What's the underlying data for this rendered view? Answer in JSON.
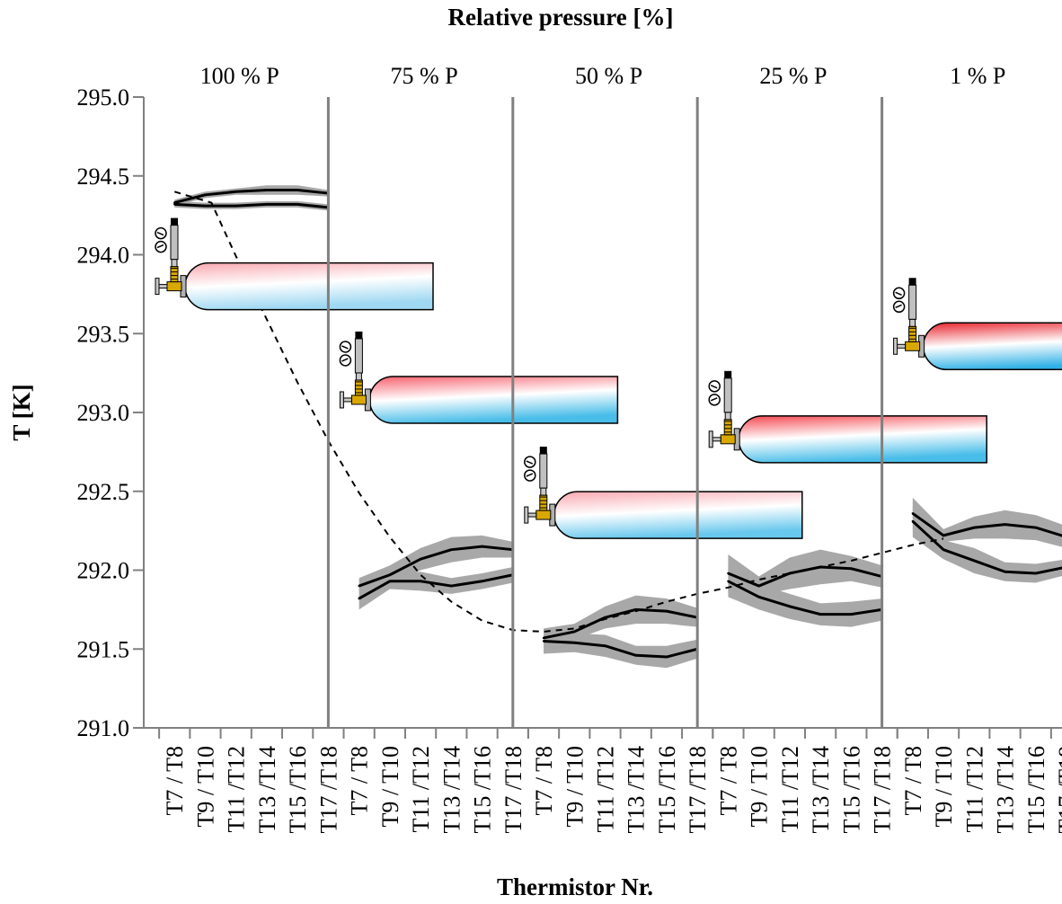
{
  "chart_data": {
    "type": "line",
    "title": "Relative pressure [%]",
    "xlabel": "Thermistor Nr.",
    "ylabel": "T [K]",
    "ylim": [
      291.0,
      295.0
    ],
    "yticks": [
      "291.0",
      "291.5",
      "292.0",
      "292.5",
      "293.0",
      "293.5",
      "294.0",
      "294.5",
      "295.0"
    ],
    "categories": [
      "T7 / T8",
      "T9 / T10",
      "T11 /T12",
      "T13 /T14",
      "T15 /T16",
      "T17 /T18"
    ],
    "grid": false,
    "panels": [
      {
        "label": "100 % P",
        "series": [
          {
            "values": [
              294.33,
              294.38,
              294.4,
              294.41,
              294.41,
              294.39
            ],
            "band": [
              0.02,
              0.02,
              0.02,
              0.03,
              0.03,
              0.02
            ]
          },
          {
            "values": [
              294.32,
              294.31,
              294.31,
              294.32,
              294.32,
              294.3
            ],
            "band": [
              0.02,
              0.02,
              0.02,
              0.02,
              0.02,
              0.02
            ]
          }
        ]
      },
      {
        "label": "75 % P",
        "series": [
          {
            "values": [
              291.9,
              291.97,
              292.07,
              292.13,
              292.15,
              292.13
            ],
            "band": [
              0.05,
              0.06,
              0.07,
              0.08,
              0.07,
              0.05
            ]
          },
          {
            "values": [
              291.82,
              291.93,
              291.93,
              291.9,
              291.93,
              291.97
            ],
            "band": [
              0.07,
              0.05,
              0.06,
              0.05,
              0.05,
              0.05
            ]
          }
        ]
      },
      {
        "label": "50 % P",
        "series": [
          {
            "values": [
              291.57,
              291.61,
              291.7,
              291.75,
              291.74,
              291.7
            ],
            "band": [
              0.06,
              0.05,
              0.07,
              0.09,
              0.08,
              0.06
            ]
          },
          {
            "values": [
              291.55,
              291.54,
              291.52,
              291.46,
              291.45,
              291.5
            ],
            "band": [
              0.08,
              0.06,
              0.07,
              0.06,
              0.07,
              0.06
            ]
          }
        ]
      },
      {
        "label": "25 % P",
        "series": [
          {
            "values": [
              291.98,
              291.9,
              291.98,
              292.02,
              292.01,
              291.96
            ],
            "band": [
              0.12,
              0.06,
              0.1,
              0.11,
              0.08,
              0.07
            ]
          },
          {
            "values": [
              291.93,
              291.83,
              291.77,
              291.72,
              291.72,
              291.75
            ],
            "band": [
              0.1,
              0.08,
              0.08,
              0.07,
              0.08,
              0.07
            ]
          }
        ]
      },
      {
        "label": "1 % P",
        "series": [
          {
            "values": [
              292.36,
              292.22,
              292.27,
              292.29,
              292.27,
              292.21
            ],
            "band": [
              0.1,
              0.04,
              0.07,
              0.09,
              0.08,
              0.07
            ]
          },
          {
            "values": [
              292.31,
              292.13,
              292.06,
              291.99,
              291.98,
              292.02
            ],
            "band": [
              0.1,
              0.06,
              0.08,
              0.06,
              0.06,
              0.05
            ]
          }
        ]
      }
    ],
    "trend": {
      "x": [
        0,
        1.2,
        2,
        3,
        4,
        5,
        6,
        7,
        8,
        9,
        10,
        11,
        12,
        13,
        14,
        15,
        16,
        17,
        18,
        19,
        20,
        21,
        22,
        23,
        24,
        25
      ],
      "y": [
        294.4,
        294.33,
        293.99,
        293.59,
        293.19,
        292.82,
        292.49,
        292.21,
        291.97,
        291.8,
        291.68,
        291.62,
        291.61,
        291.63,
        291.69,
        291.74,
        291.8,
        291.85,
        291.89,
        291.94,
        291.98,
        292.02,
        292.06,
        292.11,
        292.16,
        292.2
      ]
    },
    "cylinders": [
      {
        "panel": 0,
        "temp_level": 293.8,
        "colors": [
          "#f8a8b0",
          "#ffffff",
          "#9ed8f2"
        ]
      },
      {
        "panel": 1,
        "temp_level": 293.08,
        "colors": [
          "#f6606c",
          "#ffffff",
          "#49bde9"
        ]
      },
      {
        "panel": 2,
        "temp_level": 292.35,
        "colors": [
          "#f8a8b0",
          "#ffffff",
          "#69c8ee"
        ]
      },
      {
        "panel": 3,
        "temp_level": 292.83,
        "colors": [
          "#f4474f",
          "#ffffff",
          "#49bde9"
        ]
      },
      {
        "panel": 4,
        "temp_level": 293.42,
        "colors": [
          "#e8252e",
          "#ffffff",
          "#2fb0e6"
        ]
      }
    ],
    "colors": {
      "line": "#000000",
      "band": "#a8a8a8",
      "divider": "#808080"
    }
  }
}
